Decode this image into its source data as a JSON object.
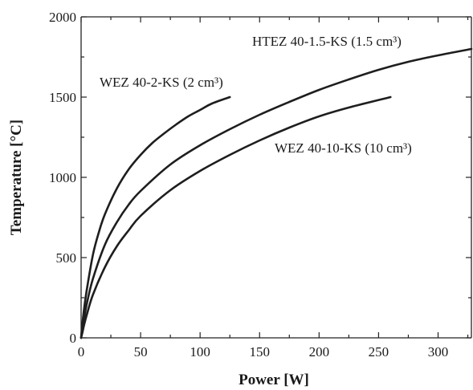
{
  "chart_data": {
    "type": "line",
    "xlabel": "Power [W]",
    "ylabel": "Temperature [°C]",
    "xlim": [
      0,
      328
    ],
    "ylim": [
      0,
      2000
    ],
    "x_ticks": [
      0,
      50,
      100,
      150,
      200,
      250,
      300
    ],
    "y_ticks": [
      0,
      500,
      1000,
      1500,
      2000
    ],
    "grid": false,
    "legend": "none",
    "series": [
      {
        "name": "WEZ 40-2-KS (2 cm³)",
        "x": [
          0,
          1,
          2.5,
          5,
          10,
          15,
          20,
          30,
          40,
          50,
          60,
          70,
          80,
          90,
          100,
          110,
          125
        ],
        "y": [
          0,
          80,
          180,
          310,
          520,
          660,
          770,
          930,
          1050,
          1140,
          1215,
          1275,
          1330,
          1380,
          1420,
          1460,
          1500
        ]
      },
      {
        "name": "HTEZ 40-1.5-KS (1.5 cm³)",
        "x": [
          0,
          1,
          2.5,
          5,
          10,
          20,
          30,
          40,
          50,
          75,
          100,
          125,
          150,
          175,
          200,
          225,
          250,
          275,
          300,
          328
        ],
        "y": [
          0,
          50,
          120,
          220,
          370,
          580,
          720,
          830,
          915,
          1080,
          1200,
          1300,
          1390,
          1470,
          1545,
          1610,
          1670,
          1720,
          1760,
          1800
        ]
      },
      {
        "name": "WEZ 40-10-KS (10 cm³)",
        "x": [
          0,
          1,
          2.5,
          5,
          10,
          20,
          30,
          40,
          50,
          75,
          100,
          125,
          150,
          175,
          200,
          225,
          260
        ],
        "y": [
          0,
          30,
          80,
          150,
          270,
          440,
          570,
          670,
          760,
          920,
          1040,
          1140,
          1230,
          1310,
          1380,
          1435,
          1500
        ]
      }
    ],
    "annotations": [
      {
        "text": "HTEZ 40-1.5-KS (1.5 cm³)"
      },
      {
        "text": "WEZ 40-2-KS (2 cm³)"
      },
      {
        "text": "WEZ 40-10-KS (10 cm³)"
      }
    ]
  }
}
